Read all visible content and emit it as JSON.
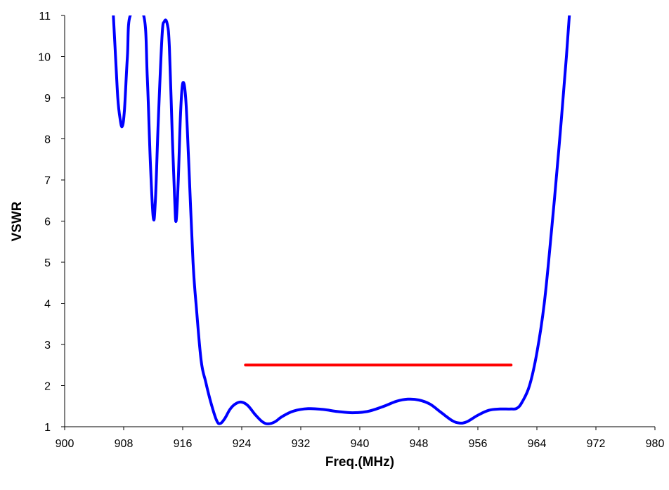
{
  "chart_data": {
    "type": "line",
    "title": "",
    "xlabel": "Freq.(MHz)",
    "ylabel": "VSWR",
    "xlim": [
      900,
      980
    ],
    "ylim": [
      1,
      11
    ],
    "x_ticks": [
      "900",
      "908",
      "916",
      "924",
      "932",
      "940",
      "948",
      "956",
      "964",
      "972",
      "980"
    ],
    "y_ticks": [
      "1",
      "2",
      "3",
      "4",
      "5",
      "6",
      "7",
      "8",
      "9",
      "10",
      "11"
    ],
    "grid": false,
    "legend": "none",
    "series": [
      {
        "color": "#0000ff",
        "points": [
          [
            906.6,
            11.0
          ],
          [
            906.9,
            10.0
          ],
          [
            907.2,
            9.0
          ],
          [
            907.5,
            8.5
          ],
          [
            907.8,
            8.3
          ],
          [
            908.1,
            8.7
          ],
          [
            908.5,
            10.0
          ],
          [
            908.9,
            11.0
          ],
          [
            910.7,
            11.0
          ],
          [
            911.2,
            9.5
          ],
          [
            911.6,
            7.5
          ],
          [
            912.0,
            6.1
          ],
          [
            912.3,
            6.5
          ],
          [
            912.7,
            8.5
          ],
          [
            913.2,
            10.5
          ],
          [
            913.5,
            10.85
          ],
          [
            913.9,
            10.8
          ],
          [
            914.2,
            10.2
          ],
          [
            914.6,
            8.0
          ],
          [
            914.9,
            6.6
          ],
          [
            915.1,
            6.0
          ],
          [
            915.4,
            7.0
          ],
          [
            915.7,
            8.6
          ],
          [
            916.0,
            9.35
          ],
          [
            916.4,
            9.0
          ],
          [
            916.8,
            7.5
          ],
          [
            917.4,
            5.0
          ],
          [
            917.9,
            3.8
          ],
          [
            918.5,
            2.6
          ],
          [
            919.1,
            2.1
          ],
          [
            919.8,
            1.6
          ],
          [
            920.6,
            1.15
          ],
          [
            921.1,
            1.08
          ],
          [
            921.7,
            1.2
          ],
          [
            922.4,
            1.42
          ],
          [
            923.1,
            1.55
          ],
          [
            923.9,
            1.6
          ],
          [
            924.8,
            1.52
          ],
          [
            925.8,
            1.3
          ],
          [
            926.8,
            1.12
          ],
          [
            927.6,
            1.07
          ],
          [
            928.5,
            1.12
          ],
          [
            929.5,
            1.25
          ],
          [
            931.0,
            1.38
          ],
          [
            933.0,
            1.44
          ],
          [
            935.0,
            1.42
          ],
          [
            937.0,
            1.37
          ],
          [
            939.0,
            1.34
          ],
          [
            941.0,
            1.37
          ],
          [
            943.0,
            1.48
          ],
          [
            945.0,
            1.62
          ],
          [
            946.5,
            1.67
          ],
          [
            948.0,
            1.65
          ],
          [
            949.5,
            1.55
          ],
          [
            951.0,
            1.35
          ],
          [
            952.5,
            1.15
          ],
          [
            953.5,
            1.09
          ],
          [
            954.5,
            1.12
          ],
          [
            956.0,
            1.28
          ],
          [
            957.5,
            1.4
          ],
          [
            959.0,
            1.43
          ],
          [
            960.5,
            1.43
          ],
          [
            961.3,
            1.45
          ],
          [
            962.0,
            1.6
          ],
          [
            963.0,
            2.0
          ],
          [
            964.0,
            2.8
          ],
          [
            965.0,
            4.0
          ],
          [
            966.0,
            5.8
          ],
          [
            967.0,
            7.8
          ],
          [
            968.0,
            10.0
          ],
          [
            968.4,
            11.0
          ]
        ]
      },
      {
        "color": "#ff0000",
        "points": [
          [
            924.5,
            2.5
          ],
          [
            960.5,
            2.5
          ]
        ]
      }
    ]
  }
}
